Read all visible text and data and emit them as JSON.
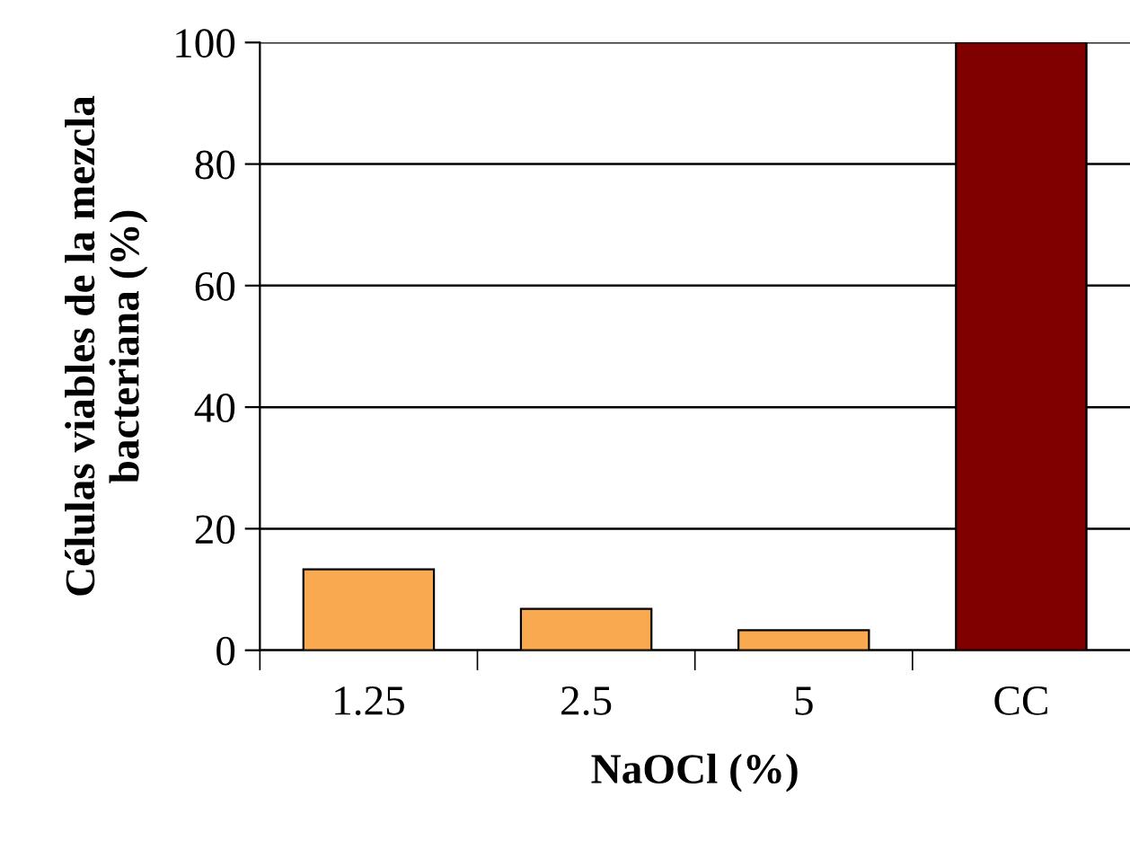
{
  "chart_data": {
    "type": "bar",
    "xlabel": "NaOCl (%)",
    "ylabel": "Células viables de la mezcla bacteriana (%)",
    "categories": [
      "1.25",
      "2.5",
      "5",
      "CC"
    ],
    "values": [
      13.3,
      6.8,
      3.3,
      100
    ],
    "colors": [
      "#f9a94f",
      "#f9a94f",
      "#f9a94f",
      "#800000"
    ],
    "ylim": [
      0,
      100
    ],
    "yticks": [
      0,
      20,
      40,
      60,
      80,
      100
    ],
    "grid": "y"
  }
}
